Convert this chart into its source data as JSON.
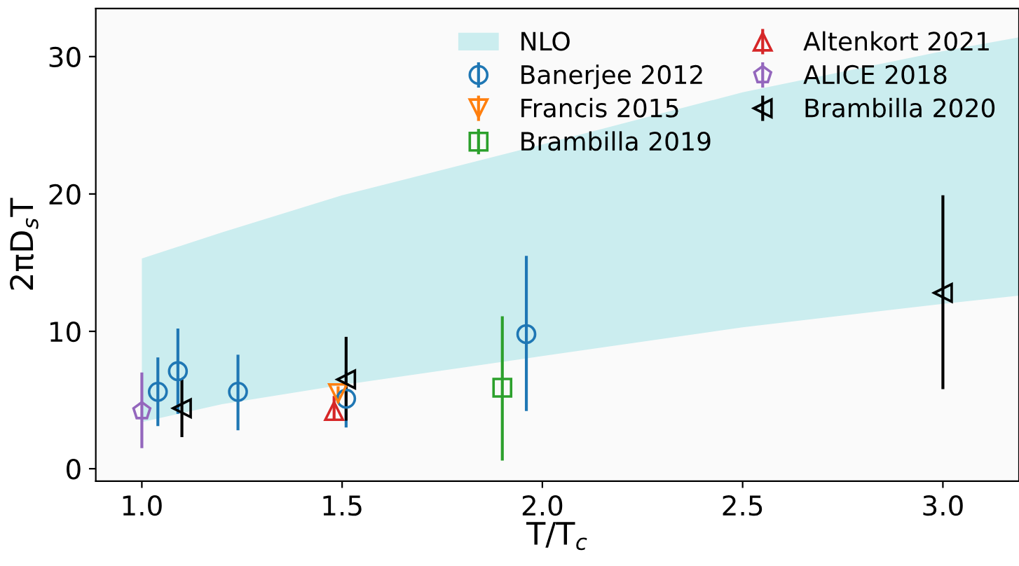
{
  "chart_data": {
    "type": "scatter",
    "xlabel": "T/T$_{c}$",
    "ylabel": "2πD$_{s}$T",
    "xlim": [
      0.885,
      3.19
    ],
    "ylim": [
      -0.9,
      33.5
    ],
    "xticks": [
      {
        "value": 1,
        "label": "1.0"
      },
      {
        "value": 1.5,
        "label": "1.5"
      },
      {
        "value": 2,
        "label": "2.0"
      },
      {
        "value": 2.5,
        "label": "2.5"
      },
      {
        "value": 3,
        "label": "3.0"
      }
    ],
    "yticks": [
      0,
      10,
      20,
      30
    ],
    "grid": false,
    "legend": "top right",
    "series": [
      {
        "name": "NLO",
        "type": "area",
        "color": "#cbedef",
        "x": [
          1.0,
          1.2,
          1.5,
          2.0,
          2.5,
          3.0,
          3.19
        ],
        "values": [
          null,
          null,
          null,
          null,
          null,
          null,
          null
        ],
        "lower": [
          3.4,
          4.7,
          6.1,
          8.2,
          10.3,
          12.0,
          12.6
        ],
        "upper": [
          15.3,
          17.2,
          19.9,
          23.6,
          27.4,
          30.4,
          31.4
        ]
      },
      {
        "name": "Banerjee 2012",
        "color": "#1f77b4",
        "marker": "circle",
        "x": [
          1.04,
          1.09,
          1.24,
          1.51,
          1.96
        ],
        "values": [
          5.6,
          7.1,
          5.6,
          5.1,
          9.8
        ],
        "errors": [
          [
            3.1,
            8.1
          ],
          [
            4.0,
            10.2
          ],
          [
            2.8,
            8.3
          ],
          [
            3.0,
            7.1
          ],
          [
            4.2,
            15.5
          ]
        ]
      },
      {
        "name": "Francis 2015",
        "color": "#ff7f0e",
        "marker": "triangle_down",
        "x": [
          1.49
        ],
        "values": [
          5.5
        ],
        "errors": [
          [
            4.8,
            6.0
          ]
        ]
      },
      {
        "name": "Brambilla 2019",
        "color": "#2ca02c",
        "marker": "square",
        "x": [
          1.9
        ],
        "values": [
          5.9
        ],
        "errors": [
          [
            0.6,
            11.1
          ]
        ]
      },
      {
        "name": "Altenkort 2021",
        "color": "#d62728",
        "marker": "triangle_up",
        "x": [
          1.48
        ],
        "values": [
          4.2
        ],
        "errors": [
          [
            3.5,
            5.3
          ]
        ]
      },
      {
        "name": "ALICE 2018",
        "color": "#9467bd",
        "x": [
          1.0
        ],
        "values": [
          4.2
        ],
        "errors": [
          [
            1.5,
            7.0
          ]
        ]
      },
      {
        "name": "Brambilla 2020",
        "color": "#000000",
        "marker": "triangle_left",
        "x": [
          1.1,
          1.51,
          3.0
        ],
        "values": [
          4.4,
          6.5,
          12.8
        ],
        "errors": [
          [
            2.3,
            6.5
          ],
          [
            3.5,
            9.6
          ],
          [
            5.8,
            19.9
          ]
        ]
      }
    ]
  }
}
